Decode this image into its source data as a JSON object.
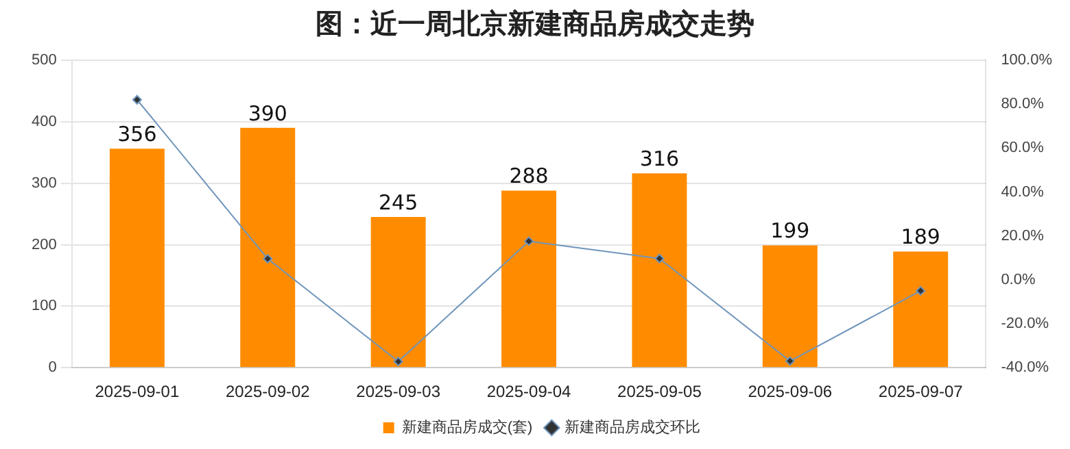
{
  "chart_data": {
    "type": "bar",
    "title": "图：近一周北京新建商品房成交走势",
    "categories": [
      "2025-09-01",
      "2025-09-02",
      "2025-09-03",
      "2025-09-04",
      "2025-09-05",
      "2025-09-06",
      "2025-09-07"
    ],
    "series": [
      {
        "name": "新建商品房成交(套)",
        "color": "#ff8c00",
        "values": [
          356,
          390,
          245,
          288,
          316,
          199,
          189
        ],
        "data_labels": true
      },
      {
        "name": "新建商品房成交环比",
        "type": "line",
        "axis": "y2",
        "color": "#6f95bb",
        "marker": "diamond",
        "values": [
          82,
          9.6,
          -37.2,
          17.6,
          9.7,
          -37.0,
          -5.0
        ]
      }
    ],
    "ylim": [
      0,
      500
    ],
    "yticks": [
      0,
      100,
      200,
      300,
      400,
      500
    ],
    "y2lim": [
      -40,
      100
    ],
    "y2ticks": [
      {
        "value": -40,
        "label": "-40.0%"
      },
      {
        "value": -20,
        "label": "-20.0%"
      },
      {
        "value": 0,
        "label": "0.0%"
      },
      {
        "value": 20,
        "label": "20.0%"
      },
      {
        "value": 40,
        "label": "40.0%"
      },
      {
        "value": 60,
        "label": "60.0%"
      },
      {
        "value": 80,
        "label": "80.0%"
      },
      {
        "value": 100,
        "label": "100.0%"
      }
    ],
    "grid": "y",
    "legend": "bottom"
  }
}
